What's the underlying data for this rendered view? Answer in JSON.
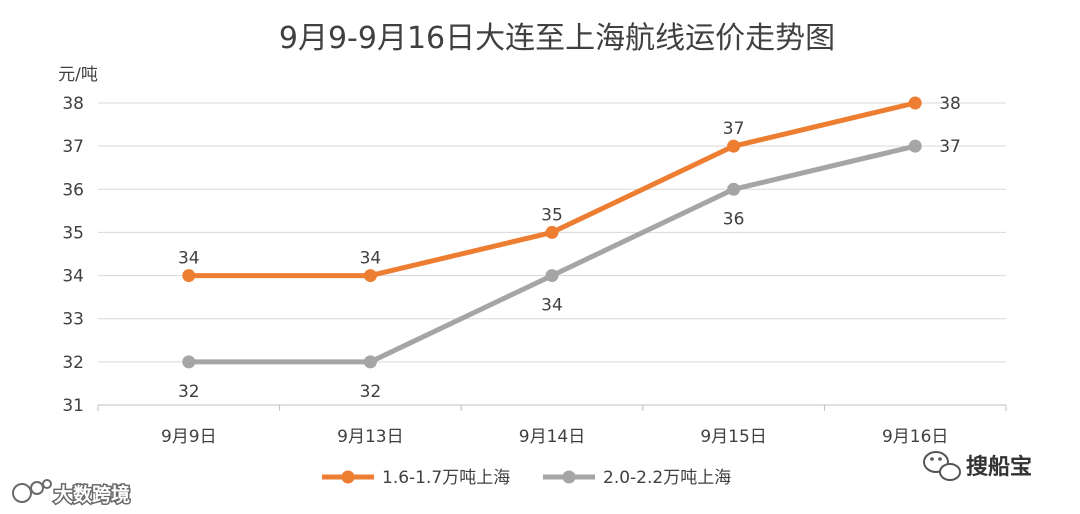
{
  "chart_data": {
    "type": "line",
    "title": "9月9-9月16日大连至上海航线运价走势图",
    "ylabel": "元/吨",
    "xlabel": "",
    "categories": [
      "9月9日",
      "9月13日",
      "9月14日",
      "9月15日",
      "9月16日"
    ],
    "ylim": [
      31,
      38
    ],
    "yticks": [
      31,
      32,
      33,
      34,
      35,
      36,
      37,
      38
    ],
    "grid": true,
    "legend": "bottom",
    "series": [
      {
        "name": "1.6-1.7万吨上海",
        "values": [
          34,
          34,
          35,
          37,
          38
        ],
        "color": "#ED7D31",
        "label_position": [
          "above",
          "above",
          "above",
          "above",
          "right"
        ]
      },
      {
        "name": "2.0-2.2万吨上海",
        "values": [
          32,
          32,
          34,
          36,
          37
        ],
        "color": "#A5A5A5",
        "label_position": [
          "below",
          "below",
          "below",
          "below",
          "right"
        ]
      }
    ]
  },
  "watermarks": {
    "left_text": "大数跨境",
    "right_text": "搜船宝"
  }
}
